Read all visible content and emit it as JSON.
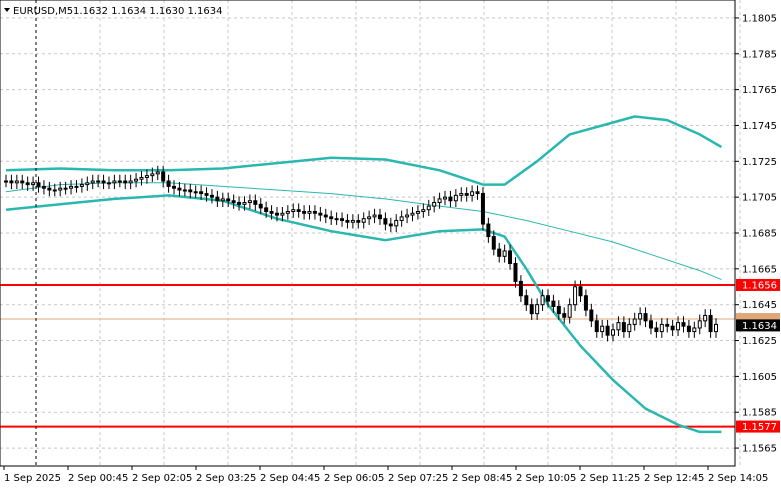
{
  "header": {
    "symbol_label": "EURUSD,M5",
    "ohlc_label": "1.1632 1.1634 1.1630 1.1634",
    "dropdown_icon": "triangle-down-icon"
  },
  "colors": {
    "background": "#ffffff",
    "grid": "#c8c8c8",
    "bollinger": "#2ab7b0",
    "moving_average": "#2ab7b0",
    "level_line": "#ff0000",
    "bid_line": "#e0a878",
    "current_price_badge": "#000000",
    "candle": "#000000"
  },
  "chart_data": {
    "type": "candlestick",
    "symbol": "EURUSD",
    "timeframe": "M5",
    "grid": true,
    "y_range": [
      1.1555,
      1.1815
    ],
    "y_ticks": [
      "1.1805",
      "1.1785",
      "1.1765",
      "1.1745",
      "1.1725",
      "1.1705",
      "1.1685",
      "1.1665",
      "1.1645",
      "1.1625",
      "1.1605",
      "1.1585",
      "1.1565"
    ],
    "x_tick_labels": [
      "1 Sep 2025",
      "2 Sep 00:45",
      "2 Sep 02:05",
      "2 Sep 03:25",
      "2 Sep 04:45",
      "2 Sep 06:05",
      "2 Sep 07:25",
      "2 Sep 08:45",
      "2 Sep 10:05",
      "2 Sep 11:25",
      "2 Sep 12:45",
      "2 Sep 14:05"
    ],
    "horizontal_levels": [
      {
        "price": 1.1656,
        "label": "1.1656"
      },
      {
        "price": 1.1577,
        "label": "1.1577"
      }
    ],
    "bid_line_price": 1.1637,
    "current_price": {
      "value": 1.1634,
      "label": "1.1634"
    },
    "closes": [
      1.1714,
      1.1713,
      1.1714,
      1.1713,
      1.1712,
      1.1713,
      1.1711,
      1.171,
      1.1709,
      1.1709,
      1.171,
      1.171,
      1.1711,
      1.1711,
      1.1712,
      1.1713,
      1.1714,
      1.1714,
      1.1713,
      1.1713,
      1.1714,
      1.1714,
      1.1713,
      1.1714,
      1.1715,
      1.1716,
      1.1717,
      1.1718,
      1.1719,
      1.1714,
      1.1711,
      1.171,
      1.1709,
      1.1709,
      1.1708,
      1.1708,
      1.1707,
      1.1706,
      1.1705,
      1.1703,
      1.1704,
      1.1703,
      1.1702,
      1.1701,
      1.1702,
      1.1703,
      1.1701,
      1.1699,
      1.1697,
      1.1696,
      1.1695,
      1.1696,
      1.1697,
      1.1698,
      1.1697,
      1.1696,
      1.1697,
      1.1696,
      1.1695,
      1.1694,
      1.1693,
      1.1693,
      1.1692,
      1.1691,
      1.1692,
      1.1691,
      1.1693,
      1.1694,
      1.1695,
      1.1693,
      1.169,
      1.1689,
      1.1692,
      1.1694,
      1.1695,
      1.1696,
      1.1697,
      1.1698,
      1.17,
      1.1702,
      1.1704,
      1.1705,
      1.1703,
      1.1706,
      1.1707,
      1.1706,
      1.1708,
      1.1707,
      1.169,
      1.1683,
      1.1676,
      1.1672,
      1.1675,
      1.1668,
      1.1658,
      1.165,
      1.1645,
      1.164,
      1.1645,
      1.165,
      1.1647,
      1.1644,
      1.164,
      1.1638,
      1.1645,
      1.1655,
      1.165,
      1.1642,
      1.1636,
      1.163,
      1.1633,
      1.1628,
      1.1631,
      1.1635,
      1.163,
      1.1634,
      1.1637,
      1.164,
      1.1636,
      1.1632,
      1.163,
      1.1634,
      1.1633,
      1.1631,
      1.1635,
      1.1633,
      1.163,
      1.1632,
      1.1636,
      1.1639,
      1.163,
      1.1634
    ],
    "bollinger_upper": [
      [
        0,
        1.172
      ],
      [
        10,
        1.1721
      ],
      [
        20,
        1.172
      ],
      [
        30,
        1.172
      ],
      [
        40,
        1.1721
      ],
      [
        50,
        1.1724
      ],
      [
        60,
        1.1727
      ],
      [
        70,
        1.1726
      ],
      [
        80,
        1.172
      ],
      [
        88,
        1.1712
      ],
      [
        92,
        1.1712
      ],
      [
        98,
        1.1725
      ],
      [
        104,
        1.174
      ],
      [
        110,
        1.1745
      ],
      [
        116,
        1.175
      ],
      [
        122,
        1.1748
      ],
      [
        128,
        1.174
      ],
      [
        132,
        1.1733
      ]
    ],
    "bollinger_middle": [
      [
        0,
        1.1708
      ],
      [
        10,
        1.1712
      ],
      [
        20,
        1.1713
      ],
      [
        30,
        1.1713
      ],
      [
        40,
        1.1711
      ],
      [
        50,
        1.1709
      ],
      [
        60,
        1.1707
      ],
      [
        70,
        1.1704
      ],
      [
        80,
        1.17
      ],
      [
        88,
        1.1697
      ],
      [
        96,
        1.1692
      ],
      [
        104,
        1.1686
      ],
      [
        112,
        1.168
      ],
      [
        120,
        1.1672
      ],
      [
        128,
        1.1664
      ],
      [
        132,
        1.1659
      ]
    ],
    "bollinger_lower": [
      [
        0,
        1.1698
      ],
      [
        10,
        1.1701
      ],
      [
        20,
        1.1704
      ],
      [
        30,
        1.1706
      ],
      [
        40,
        1.1703
      ],
      [
        50,
        1.1693
      ],
      [
        60,
        1.1686
      ],
      [
        70,
        1.1681
      ],
      [
        80,
        1.1686
      ],
      [
        88,
        1.1687
      ],
      [
        92,
        1.1683
      ],
      [
        96,
        1.1665
      ],
      [
        100,
        1.1645
      ],
      [
        106,
        1.1622
      ],
      [
        112,
        1.1603
      ],
      [
        118,
        1.1587
      ],
      [
        124,
        1.1578
      ],
      [
        128,
        1.1574
      ],
      [
        132,
        1.1574
      ]
    ]
  }
}
